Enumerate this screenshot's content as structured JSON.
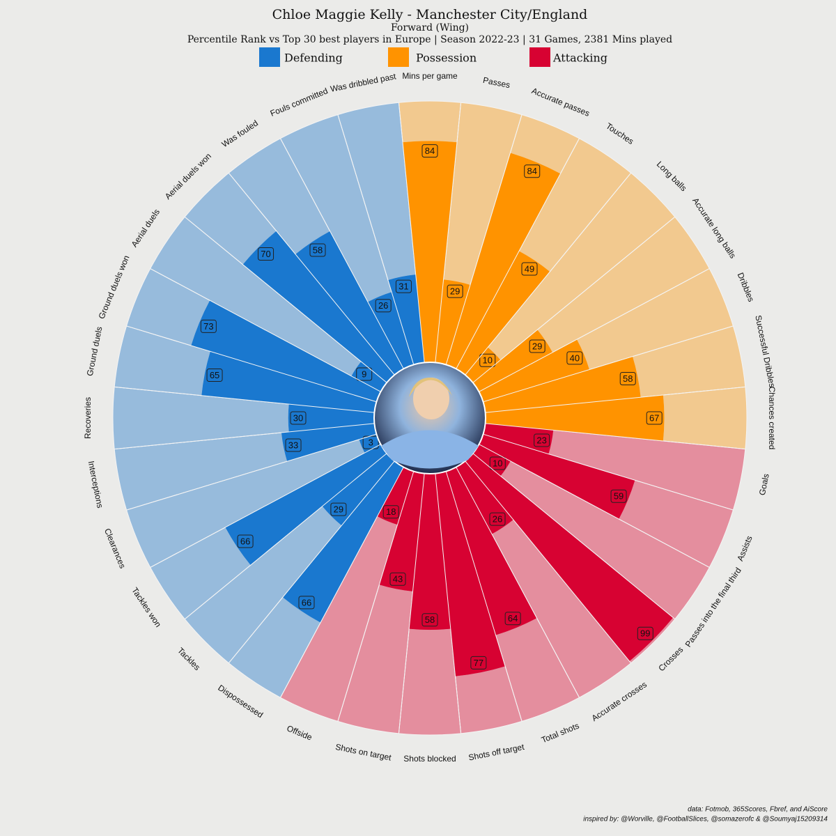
{
  "chart_data": {
    "type": "radial_bar",
    "title": "Chloe Maggie Kelly - Manchester City/England",
    "subtitle": "Forward (Wing)",
    "description": "Percentile Rank vs Top 30 best players in Europe | Season 2022-23 | 31 Games, 2381 Mins played",
    "ylim": [
      0,
      100
    ],
    "series": [
      {
        "name": "Possession",
        "color": "#ff9300",
        "background_color": "#f2c98f",
        "categories": [
          "Mins per game",
          "Passes",
          "Accurate passes",
          "Touches",
          "Long balls",
          "Accurate long balls",
          "Dribbles",
          "Successful Dribbles",
          "Chances created"
        ],
        "values": [
          84,
          29,
          84,
          49,
          10,
          29,
          40,
          58,
          67
        ]
      },
      {
        "name": "Attacking",
        "color": "#d70232",
        "background_color": "#e48e9e",
        "categories": [
          "Goals",
          "Assists",
          "Passes into the final third",
          "Crosses",
          "Accurate crosses",
          "Total shots",
          "Shots off target",
          "Shots blocked",
          "Shots on target",
          "Offside"
        ],
        "values": [
          23,
          59,
          10,
          99,
          26,
          64,
          77,
          58,
          43,
          18
        ]
      },
      {
        "name": "Defending",
        "color": "#1a78cf",
        "background_color": "#97bbdc",
        "categories": [
          "Dispossessed",
          "Tackles",
          "Tackles won",
          "Clearances",
          "Interceptions",
          "Recoveries",
          "Ground duels",
          "Ground duels won",
          "Aerial duels",
          "Aerial duels won",
          "Was fouled",
          "Fouls committed",
          "Was dribbled past"
        ],
        "values": [
          66,
          29,
          66,
          3,
          33,
          30,
          65,
          73,
          9,
          70,
          58,
          26,
          31
        ]
      }
    ],
    "credits": [
      "data: Fotmob, 365Scores, Fbref, and AiScore",
      "inspired by: @Worville, @FootballSlices, @somazerofc & @Soumyaj15209314"
    ]
  }
}
